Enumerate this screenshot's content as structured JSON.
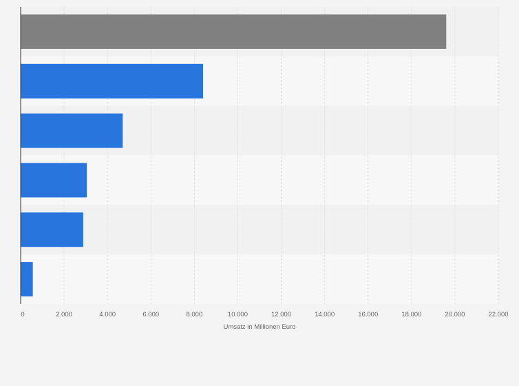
{
  "chart_data": {
    "type": "bar",
    "orientation": "horizontal",
    "categories": [
      "",
      "",
      "",
      "",
      "",
      ""
    ],
    "values": [
      19600,
      8400,
      4700,
      3050,
      2880,
      560
    ],
    "xlabel": "Umsatz in Millionen Euro",
    "ylabel": "",
    "xlim": [
      0,
      22000
    ],
    "xticks": [
      0,
      2000,
      4000,
      6000,
      8000,
      10000,
      12000,
      14000,
      16000,
      18000,
      20000,
      22000
    ],
    "xtick_labels": [
      "0",
      "2.000",
      "4.000",
      "6.000",
      "8.000",
      "10.000",
      "12.000",
      "14.000",
      "16.000",
      "18.000",
      "20.000",
      "22.000"
    ],
    "grid": true,
    "legend": "none",
    "highlight_index": 0
  },
  "colors": {
    "bar": "#2876dd",
    "highlight_bar": "#808080",
    "band_light": "#f7f7f7",
    "band_dark": "#f1f1f1",
    "grid": "#dddddd",
    "axis": "#333333",
    "text": "#666666"
  }
}
